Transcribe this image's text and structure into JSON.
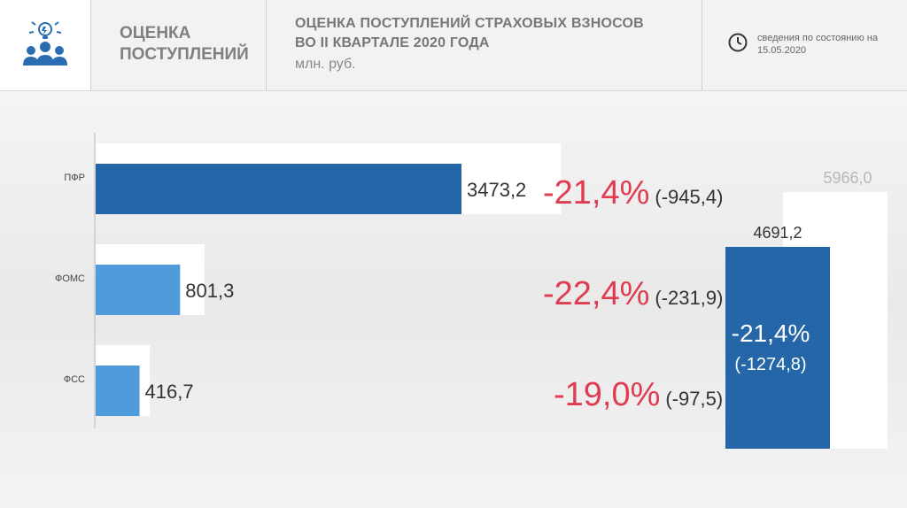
{
  "header": {
    "section_title": "ОЦЕНКА ПОСТУПЛЕНИЙ",
    "title_line1": "ОЦЕНКА ПОСТУПЛЕНИЙ СТРАХОВЫХ ВЗНОСОВ",
    "title_line2": "ВО II КВАРТАЛЕ 2020 ГОДА",
    "subtitle": "млн. руб.",
    "date_line1": "сведения по состоянию на",
    "date_line2": "15.05.2020"
  },
  "icons": {
    "logo": "people-idea-icon",
    "clock": "clock-icon"
  },
  "colors": {
    "bar_primary": "#2566a8",
    "bar_secondary": "#4f9bdc",
    "bar_previous": "#ffffff",
    "percent": "#e03c51",
    "total_previous_label": "#b8b8b8"
  },
  "chart_data": {
    "type": "bar",
    "orientation": "horizontal",
    "categories": [
      "ПФР",
      "ФОМС",
      "ФСС"
    ],
    "series": [
      {
        "values": [
          4418.6,
          1033.2,
          514.2
        ]
      },
      {
        "values": [
          3473.2,
          801.3,
          416.7
        ]
      }
    ],
    "value_labels": [
      "3473,2",
      "801,3",
      "416,7"
    ],
    "change_percent": [
      "-21,4%",
      "-22,4%",
      "-19,0%"
    ],
    "change_absolute": [
      "(-945,4)",
      "(-231,9)",
      "(-97,5)"
    ],
    "total": {
      "previous": 5966.0,
      "current": 4691.2,
      "previous_label": "5966,0",
      "current_label": "4691,2",
      "change_percent": "-21,4%",
      "change_absolute": "(-1274,8)"
    },
    "legend": "none",
    "grid": false
  }
}
